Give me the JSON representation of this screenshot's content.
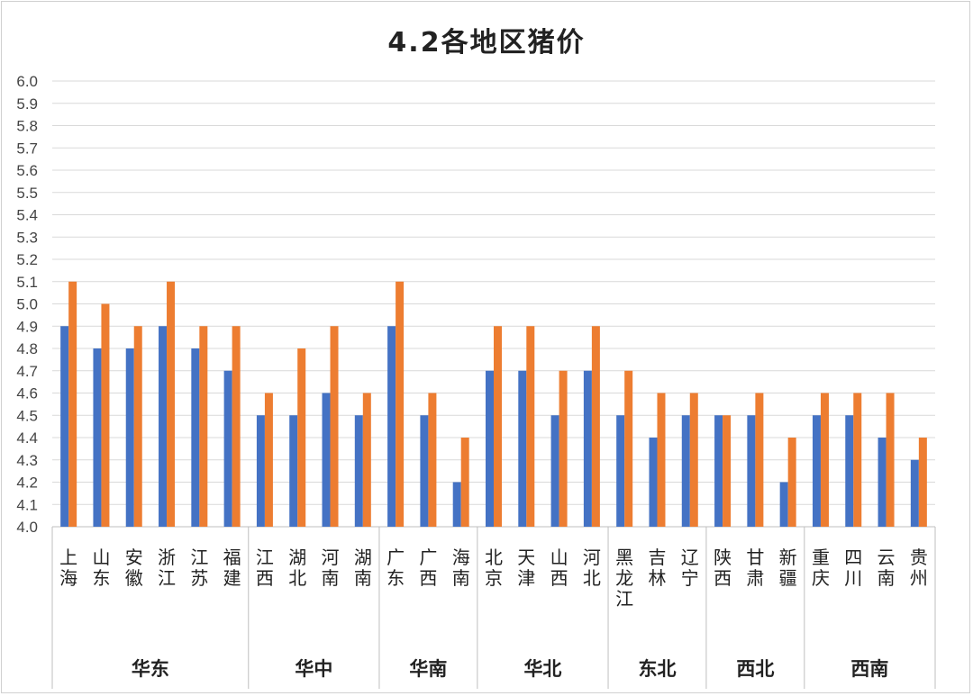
{
  "chart_data": {
    "type": "bar",
    "title": "4.2各地区猪价",
    "ylim": [
      4.0,
      6.0
    ],
    "ytick_step": 0.1,
    "grid": true,
    "groups": [
      {
        "name": "华东",
        "categories": [
          "上海",
          "山东",
          "安徽",
          "浙江",
          "江苏",
          "福建"
        ]
      },
      {
        "name": "华中",
        "categories": [
          "江西",
          "湖北",
          "河南",
          "湖南"
        ]
      },
      {
        "name": "华南",
        "categories": [
          "广东",
          "广西",
          "海南"
        ]
      },
      {
        "name": "华北",
        "categories": [
          "北京",
          "天津",
          "山西",
          "河北"
        ]
      },
      {
        "name": "东北",
        "categories": [
          "黑龙江",
          "吉林",
          "辽宁"
        ]
      },
      {
        "name": "西北",
        "categories": [
          "陕西",
          "甘肃",
          "新疆"
        ]
      },
      {
        "name": "西南",
        "categories": [
          "重庆",
          "四川",
          "云南",
          "贵州"
        ]
      }
    ],
    "categories": [
      "上海",
      "山东",
      "安徽",
      "浙江",
      "江苏",
      "福建",
      "江西",
      "湖北",
      "河南",
      "湖南",
      "广东",
      "广西",
      "海南",
      "北京",
      "天津",
      "山西",
      "河北",
      "黑龙江",
      "吉林",
      "辽宁",
      "陕西",
      "甘肃",
      "新疆",
      "重庆",
      "四川",
      "云南",
      "贵州"
    ],
    "series": [
      {
        "color": "#4472c4",
        "values": [
          4.9,
          4.8,
          4.8,
          4.9,
          4.8,
          4.7,
          4.5,
          4.5,
          4.6,
          4.5,
          4.9,
          4.5,
          4.2,
          4.7,
          4.7,
          4.5,
          4.7,
          4.5,
          4.4,
          4.5,
          4.5,
          4.5,
          4.2,
          4.5,
          4.5,
          4.4,
          4.3
        ]
      },
      {
        "color": "#ed7d31",
        "values": [
          5.1,
          5.0,
          4.9,
          5.1,
          4.9,
          4.9,
          4.6,
          4.8,
          4.9,
          4.6,
          5.1,
          4.6,
          4.4,
          4.9,
          4.9,
          4.7,
          4.9,
          4.7,
          4.6,
          4.6,
          4.5,
          4.6,
          4.4,
          4.6,
          4.6,
          4.6,
          4.4
        ]
      }
    ]
  }
}
